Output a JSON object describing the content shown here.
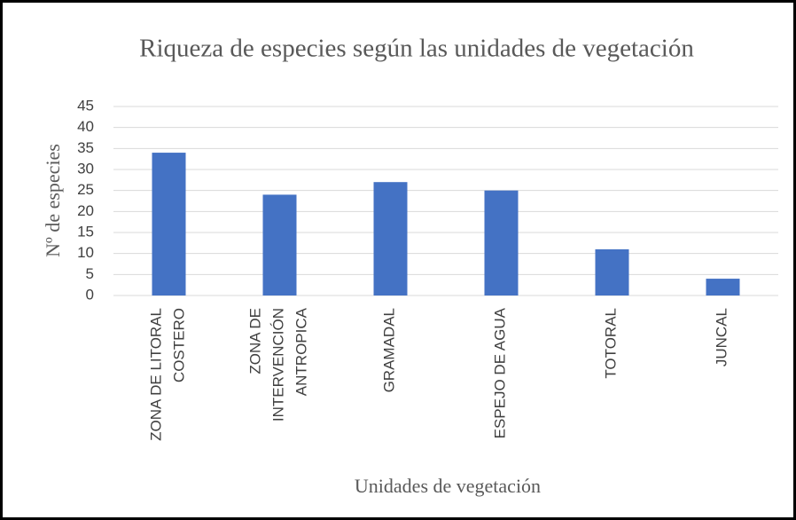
{
  "chart_data": {
    "type": "bar",
    "title": "Riqueza de especies según las unidades de vegetación",
    "x_label": "Unidades de vegetación",
    "y_label": "Nº de especies",
    "categories": [
      [
        "ZONA DE LITORAL",
        "COSTERO"
      ],
      [
        "ZONA DE",
        "INTERVENCIÓN",
        "ANTROPICA"
      ],
      [
        "GRAMADAL"
      ],
      [
        "ESPEJO DE AGUA"
      ],
      [
        "TOTORAL"
      ],
      [
        "JUNCAL"
      ]
    ],
    "values": [
      34,
      24,
      27,
      25,
      11,
      4
    ],
    "color": "#4472c4",
    "ylim": [
      0,
      45
    ],
    "yticks": [
      0,
      5,
      10,
      15,
      20,
      25,
      30,
      35,
      40,
      45
    ],
    "grid": true
  }
}
